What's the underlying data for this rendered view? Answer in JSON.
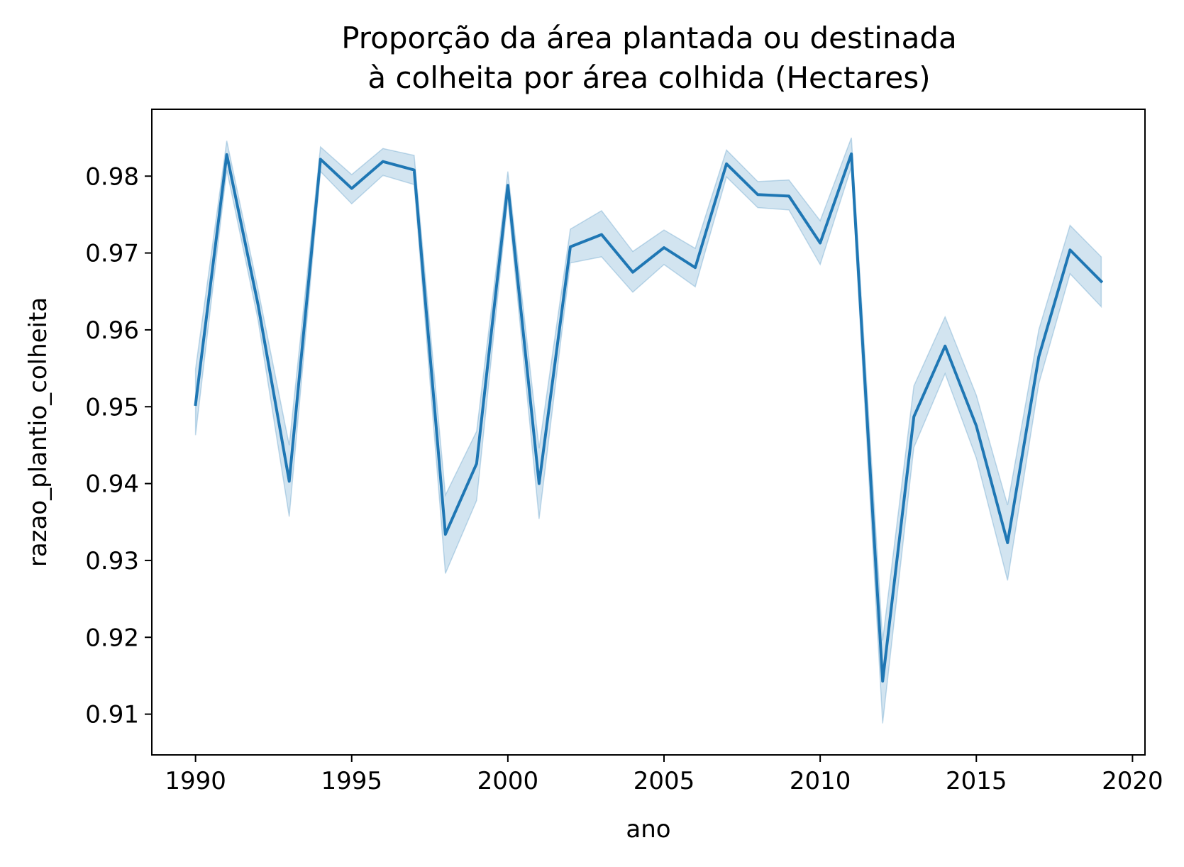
{
  "chart_data": {
    "type": "line",
    "title_lines": [
      "Proporção da área plantada ou destinada",
      "à colheita por área colhida (Hectares)"
    ],
    "xlabel": "ano",
    "ylabel": "razao_plantio_colheita",
    "xlim": [
      1988.6,
      2020.4
    ],
    "ylim": [
      0.9047,
      0.9887
    ],
    "x_ticks": [
      1990,
      1995,
      2000,
      2005,
      2010,
      2015,
      2020
    ],
    "x_tick_labels": [
      "1990",
      "1995",
      "2000",
      "2005",
      "2010",
      "2015",
      "2020"
    ],
    "y_ticks": [
      0.91,
      0.92,
      0.93,
      0.94,
      0.95,
      0.96,
      0.97,
      0.98
    ],
    "y_tick_labels": [
      "0.91",
      "0.92",
      "0.93",
      "0.94",
      "0.95",
      "0.96",
      "0.97",
      "0.98"
    ],
    "grid": false,
    "legend": "none",
    "colors": {
      "line": "#1f77b4",
      "band": "#1f77b4",
      "band_opacity": 0.2,
      "axes": "#000000"
    },
    "series": [
      {
        "x": [
          1990,
          1991,
          1992,
          1993,
          1994,
          1995,
          1996,
          1997,
          1998,
          1999,
          2000,
          2001,
          2002,
          2003,
          2004,
          2005,
          2006,
          2007,
          2008,
          2009,
          2010,
          2011,
          2012,
          2013,
          2014,
          2015,
          2016,
          2017,
          2018,
          2019
        ],
        "y": [
          0.9503,
          0.9828,
          0.9633,
          0.9403,
          0.9822,
          0.9784,
          0.9819,
          0.9808,
          0.9334,
          0.9426,
          0.9788,
          0.94,
          0.9708,
          0.9724,
          0.9675,
          0.9707,
          0.9681,
          0.9816,
          0.9776,
          0.9774,
          0.9713,
          0.9829,
          0.9143,
          0.9487,
          0.9579,
          0.9475,
          0.9323,
          0.9565,
          0.9704,
          0.9663
        ],
        "ci_low": [
          0.9463,
          0.9808,
          0.9613,
          0.9357,
          0.9806,
          0.9764,
          0.9801,
          0.9789,
          0.9283,
          0.9378,
          0.977,
          0.9354,
          0.9687,
          0.9695,
          0.9649,
          0.9685,
          0.9656,
          0.9799,
          0.9759,
          0.9756,
          0.9685,
          0.9812,
          0.9088,
          0.9447,
          0.9543,
          0.9433,
          0.9274,
          0.953,
          0.9673,
          0.963
        ],
        "ci_high": [
          0.9549,
          0.9846,
          0.9653,
          0.945,
          0.9838,
          0.9802,
          0.9836,
          0.9827,
          0.9385,
          0.9468,
          0.9806,
          0.9446,
          0.9731,
          0.9755,
          0.9702,
          0.973,
          0.9706,
          0.9834,
          0.9793,
          0.9795,
          0.9742,
          0.985,
          0.9196,
          0.9527,
          0.9617,
          0.9515,
          0.9372,
          0.96,
          0.9736,
          0.9695
        ]
      }
    ]
  }
}
